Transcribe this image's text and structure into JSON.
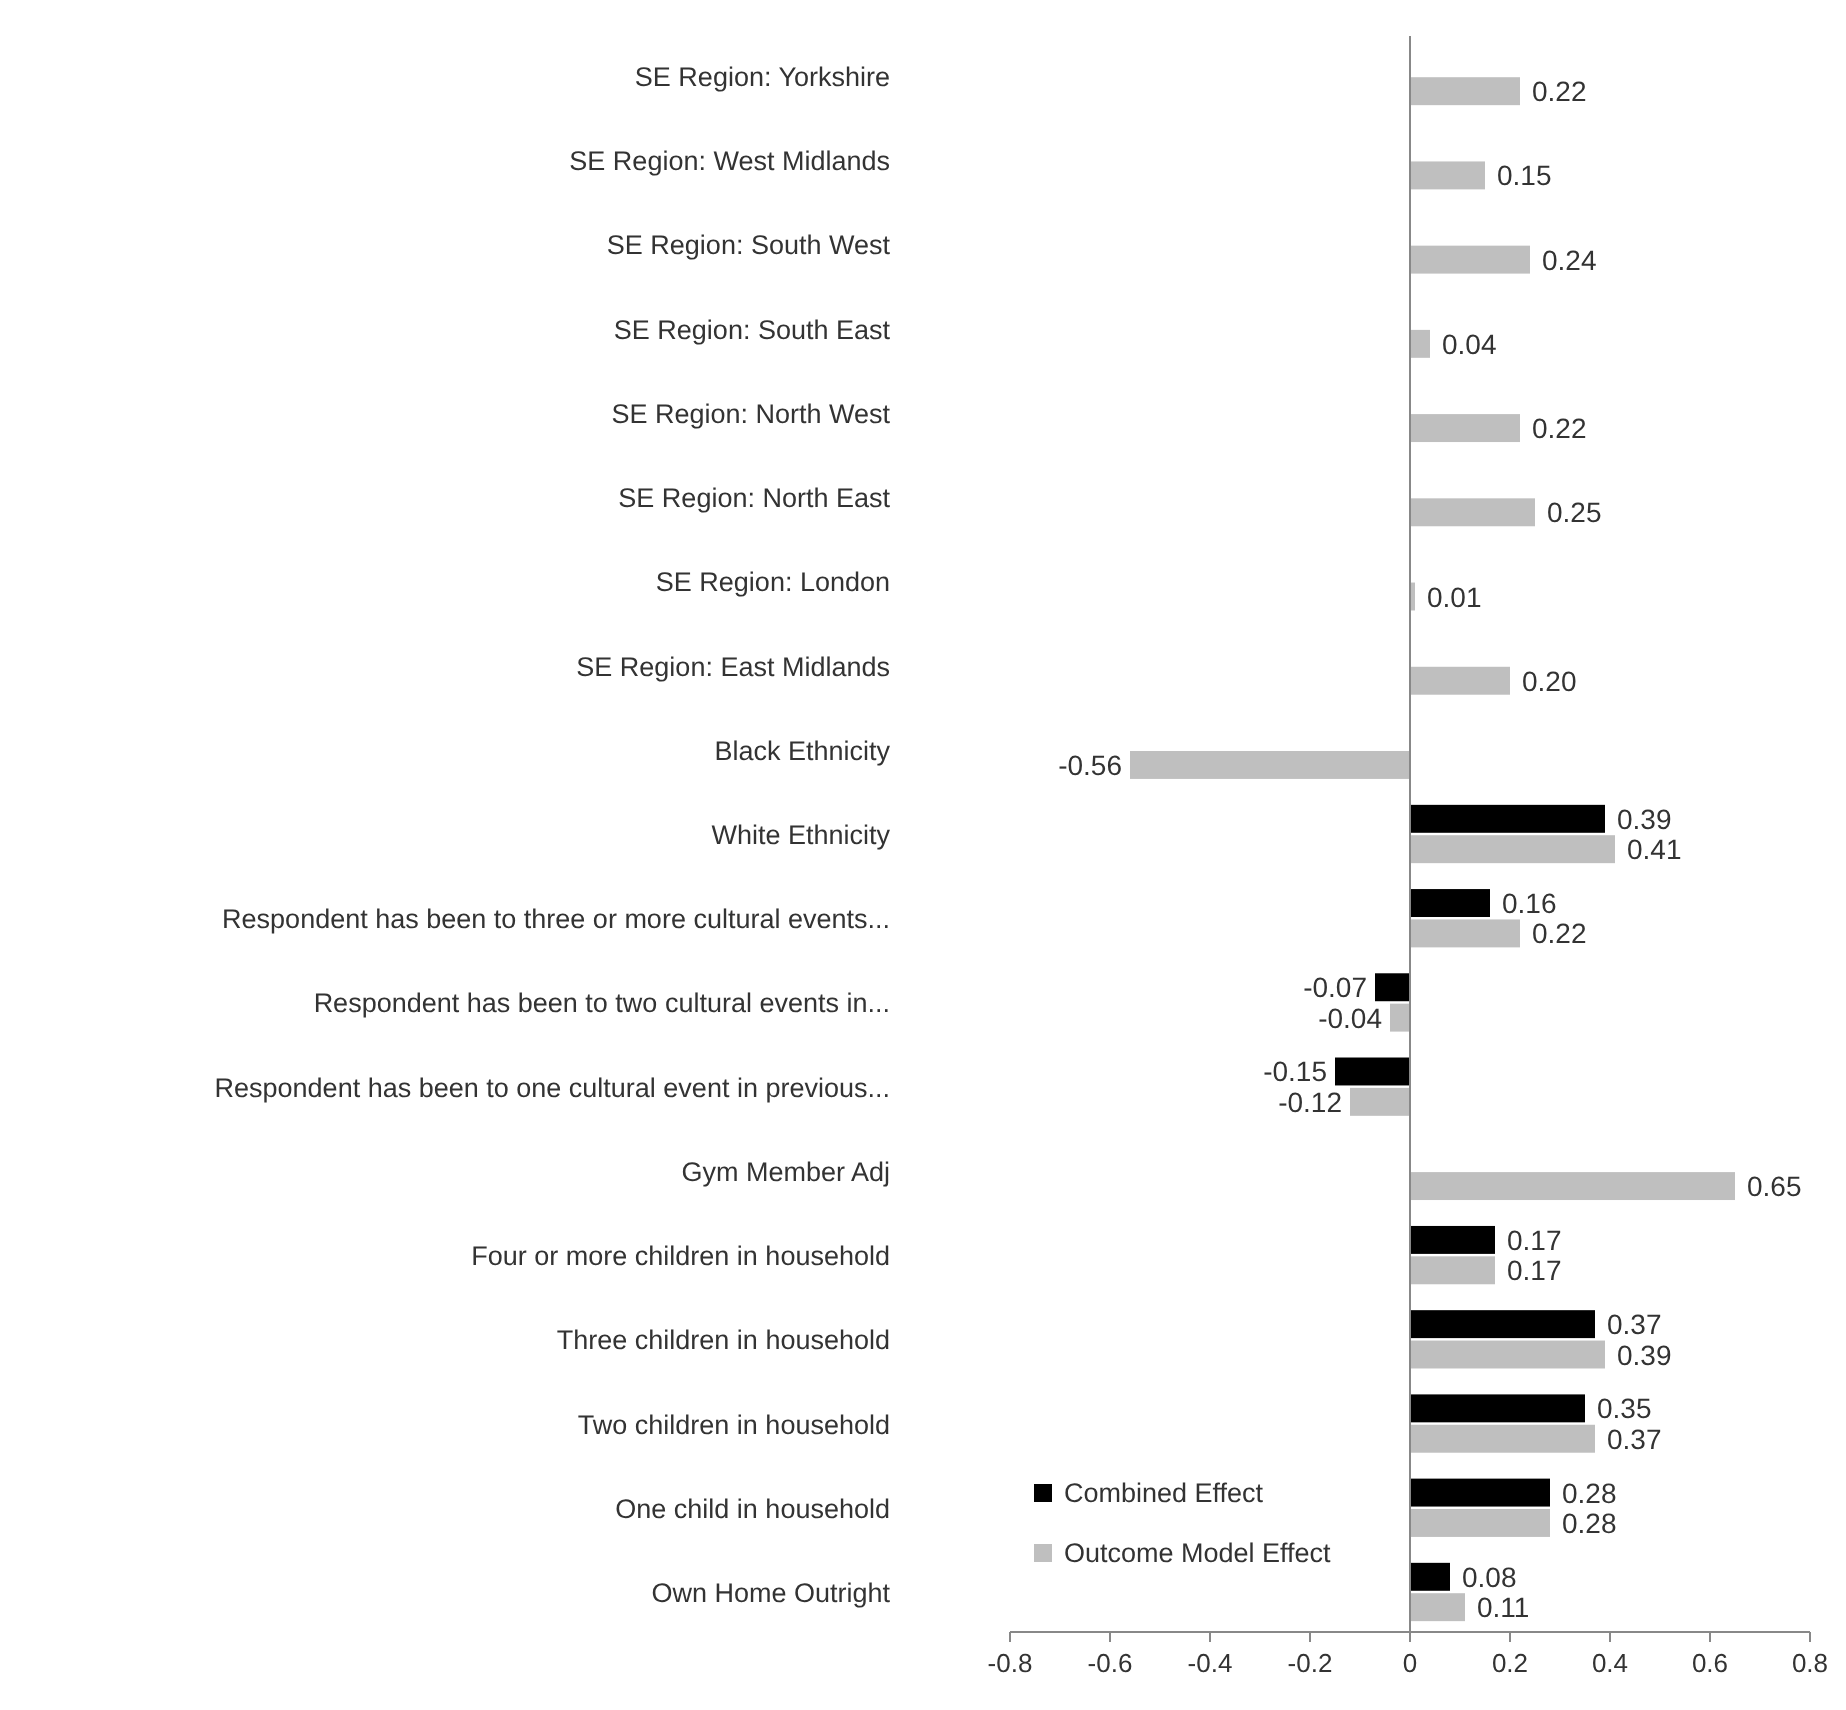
{
  "chart_data": {
    "type": "bar",
    "orientation": "horizontal",
    "categories": [
      "SE Region: Yorkshire",
      "SE Region: West Midlands",
      "SE Region: South West",
      "SE Region: South East",
      "SE Region: North West",
      "SE Region: North East",
      "SE Region: London",
      "SE Region: East Midlands",
      "Black Ethnicity",
      "White Ethnicity",
      "Respondent has been to three or more cultural events...",
      "Respondent has been to two cultural events in...",
      "Respondent has been to one cultural event in previous...",
      "Gym Member Adj",
      "Four or more children in household",
      "Three children in household",
      "Two children in household",
      "One child in household",
      "Own Home Outright"
    ],
    "series": [
      {
        "name": "Combined Effect",
        "color": "#000000",
        "values": [
          null,
          null,
          null,
          null,
          null,
          null,
          null,
          null,
          null,
          0.39,
          0.16,
          -0.07,
          -0.15,
          null,
          0.17,
          0.37,
          0.35,
          0.28,
          0.08
        ],
        "value_labels": [
          null,
          null,
          null,
          null,
          null,
          null,
          null,
          null,
          null,
          "0.39",
          "0.16",
          "-0.07",
          "-0.15",
          null,
          "0.17",
          "0.37",
          "0.35",
          "0.28",
          "0.08"
        ]
      },
      {
        "name": "Outcome Model Effect",
        "color": "#bfbfbf",
        "values": [
          0.22,
          0.15,
          0.24,
          0.04,
          0.22,
          0.25,
          0.01,
          0.2,
          -0.56,
          0.41,
          0.22,
          -0.04,
          -0.12,
          0.65,
          0.17,
          0.39,
          0.37,
          0.28,
          0.11
        ],
        "value_labels": [
          "0.22",
          "0.15",
          "0.24",
          "0.04",
          "0.22",
          "0.25",
          "0.01",
          "0.20",
          "-0.56",
          "0.41",
          "0.22",
          "-0.04",
          "-0.12",
          "0.65",
          "0.17",
          "0.39",
          "0.37",
          "0.28",
          "0.11"
        ]
      }
    ],
    "xlim": [
      -0.8,
      0.8
    ],
    "xticks": [
      -0.8,
      -0.6,
      -0.4,
      -0.2,
      0,
      0.2,
      0.4,
      0.6,
      0.8
    ],
    "legend": "bottom left"
  }
}
